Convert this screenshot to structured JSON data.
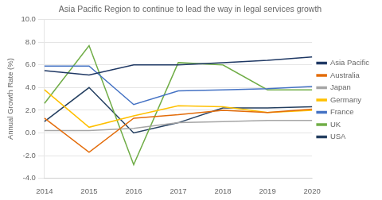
{
  "chart_data": {
    "type": "line",
    "title": "Asia Pacific Region to continue to lead the way in legal services growth",
    "y_label": "Annual Growth Rate (%)",
    "categories": [
      "2014",
      "2015",
      "2016",
      "2017",
      "2018",
      "2019",
      "2020"
    ],
    "series": [
      {
        "name": "Asia Pacific",
        "color": "#1F3864",
        "values": [
          5.5,
          5.1,
          6.0,
          6.0,
          6.2,
          6.4,
          6.7
        ]
      },
      {
        "name": "Australia",
        "color": "#E36C0A",
        "values": [
          1.3,
          -1.7,
          1.3,
          1.6,
          2.0,
          1.8,
          2.1
        ]
      },
      {
        "name": "Japan",
        "color": "#A6A6A6",
        "values": [
          0.2,
          0.2,
          0.4,
          0.9,
          1.0,
          1.1,
          1.1
        ]
      },
      {
        "name": "Germany",
        "color": "#FFC000",
        "values": [
          3.8,
          0.5,
          1.5,
          2.4,
          2.3,
          1.8,
          2.0
        ]
      },
      {
        "name": "France",
        "color": "#4472C4",
        "values": [
          5.9,
          5.9,
          2.5,
          3.7,
          3.8,
          3.9,
          4.1
        ]
      },
      {
        "name": "UK",
        "color": "#70AD47",
        "values": [
          2.6,
          7.7,
          -2.8,
          6.2,
          6.0,
          3.8,
          3.8
        ]
      },
      {
        "name": "USA",
        "color": "#243F60",
        "values": [
          1.0,
          4.0,
          0.0,
          0.9,
          2.2,
          2.2,
          2.3
        ]
      }
    ],
    "ylim": [
      -4.0,
      10.0
    ],
    "yticks": [
      {
        "value": -4,
        "label": "-4.0"
      },
      {
        "value": -2,
        "label": "-2.0"
      },
      {
        "value": 0,
        "label": "0.0"
      },
      {
        "value": 2,
        "label": "2.0"
      },
      {
        "value": 4,
        "label": "4.0"
      },
      {
        "value": 6,
        "label": "6.0"
      },
      {
        "value": 8,
        "label": "8.0"
      },
      {
        "value": 10,
        "label": "10.0"
      }
    ],
    "grid": true,
    "legend": "right"
  }
}
